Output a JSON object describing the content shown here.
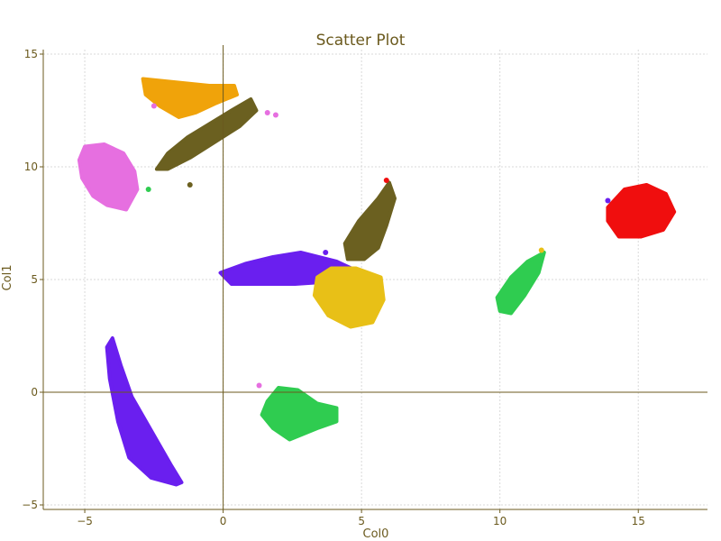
{
  "chart_data": {
    "type": "scatter",
    "title": "Scatter Plot",
    "xlabel": "Col0",
    "ylabel": "Col1",
    "xlim": [
      -6.5,
      17.5
    ],
    "ylim": [
      -5.2,
      15.2
    ],
    "xticks": [
      -5,
      0,
      5,
      10,
      15
    ],
    "yticks": [
      -5,
      0,
      5,
      10,
      15
    ],
    "grid": true,
    "clusters": [
      {
        "color": "#f0a30a",
        "points": [
          [
            -2.9,
            13.9
          ],
          [
            -2.1,
            13.8
          ],
          [
            -1.3,
            13.7
          ],
          [
            -0.5,
            13.6
          ],
          [
            0.4,
            13.6
          ],
          [
            0.5,
            13.2
          ],
          [
            -0.3,
            12.8
          ],
          [
            -1.0,
            12.4
          ],
          [
            -1.6,
            12.2
          ],
          [
            -2.3,
            12.7
          ],
          [
            -2.8,
            13.2
          ]
        ]
      },
      {
        "color": "#6b6020",
        "points": [
          [
            -2.4,
            9.9
          ],
          [
            -2.0,
            10.6
          ],
          [
            -1.3,
            11.3
          ],
          [
            -0.5,
            11.9
          ],
          [
            0.3,
            12.5
          ],
          [
            1.0,
            13.0
          ],
          [
            1.2,
            12.5
          ],
          [
            0.6,
            11.8
          ],
          [
            -0.3,
            11.1
          ],
          [
            -1.2,
            10.4
          ],
          [
            -2.0,
            9.9
          ]
        ]
      },
      {
        "color": "#e66fe0",
        "points": [
          [
            -5.0,
            10.9
          ],
          [
            -4.3,
            11.0
          ],
          [
            -3.6,
            10.6
          ],
          [
            -3.2,
            9.8
          ],
          [
            -3.1,
            9.0
          ],
          [
            -3.5,
            8.1
          ],
          [
            -4.2,
            8.3
          ],
          [
            -4.7,
            8.7
          ],
          [
            -5.1,
            9.5
          ],
          [
            -5.2,
            10.3
          ]
        ]
      },
      {
        "color": "#6a1fef",
        "points": [
          [
            -0.1,
            5.3
          ],
          [
            0.8,
            5.7
          ],
          [
            1.8,
            6.0
          ],
          [
            2.8,
            6.2
          ],
          [
            4.1,
            5.8
          ],
          [
            4.8,
            5.4
          ],
          [
            3.8,
            4.9
          ],
          [
            2.6,
            4.8
          ],
          [
            1.4,
            4.8
          ],
          [
            0.3,
            4.8
          ]
        ]
      },
      {
        "color": "#6b6020",
        "points": [
          [
            4.4,
            6.6
          ],
          [
            4.9,
            7.6
          ],
          [
            5.6,
            8.6
          ],
          [
            6.0,
            9.3
          ],
          [
            6.2,
            8.6
          ],
          [
            5.9,
            7.4
          ],
          [
            5.6,
            6.4
          ],
          [
            5.1,
            5.9
          ],
          [
            4.5,
            5.9
          ]
        ]
      },
      {
        "color": "#e8c017",
        "points": [
          [
            3.4,
            5.1
          ],
          [
            3.9,
            5.5
          ],
          [
            4.8,
            5.5
          ],
          [
            5.7,
            5.1
          ],
          [
            5.8,
            4.1
          ],
          [
            5.4,
            3.1
          ],
          [
            4.6,
            2.9
          ],
          [
            3.8,
            3.4
          ],
          [
            3.3,
            4.3
          ]
        ]
      },
      {
        "color": "#2fcc50",
        "points": [
          [
            9.9,
            4.2
          ],
          [
            10.4,
            5.1
          ],
          [
            11.0,
            5.8
          ],
          [
            11.6,
            6.2
          ],
          [
            11.4,
            5.3
          ],
          [
            10.9,
            4.3
          ],
          [
            10.4,
            3.5
          ],
          [
            10.0,
            3.6
          ]
        ]
      },
      {
        "color": "#f00e0e",
        "points": [
          [
            13.9,
            8.2
          ],
          [
            14.5,
            9.0
          ],
          [
            15.3,
            9.2
          ],
          [
            16.0,
            8.8
          ],
          [
            16.3,
            8.0
          ],
          [
            15.9,
            7.2
          ],
          [
            15.1,
            6.9
          ],
          [
            14.3,
            6.9
          ],
          [
            13.9,
            7.6
          ]
        ]
      },
      {
        "color": "#2fcc50",
        "points": [
          [
            1.6,
            -0.4
          ],
          [
            2.0,
            0.2
          ],
          [
            2.7,
            0.1
          ],
          [
            3.4,
            -0.5
          ],
          [
            4.1,
            -0.7
          ],
          [
            4.1,
            -1.3
          ],
          [
            3.4,
            -1.6
          ],
          [
            2.4,
            -2.1
          ],
          [
            1.8,
            -1.6
          ],
          [
            1.4,
            -1.0
          ]
        ]
      },
      {
        "color": "#6a1fef",
        "points": [
          [
            -4.0,
            2.4
          ],
          [
            -3.7,
            1.2
          ],
          [
            -3.3,
            -0.2
          ],
          [
            -2.6,
            -1.7
          ],
          [
            -1.9,
            -3.2
          ],
          [
            -1.5,
            -4.0
          ],
          [
            -1.7,
            -4.1
          ],
          [
            -2.6,
            -3.8
          ],
          [
            -3.4,
            -2.9
          ],
          [
            -3.8,
            -1.3
          ],
          [
            -4.1,
            0.6
          ],
          [
            -4.2,
            2.0
          ]
        ]
      }
    ],
    "scatter_points": [
      {
        "x": 1.6,
        "y": 12.4,
        "color": "#e66fe0"
      },
      {
        "x": 1.9,
        "y": 12.3,
        "color": "#e66fe0"
      },
      {
        "x": -2.5,
        "y": 12.7,
        "color": "#e66fe0"
      },
      {
        "x": -1.2,
        "y": 9.2,
        "color": "#6b6020"
      },
      {
        "x": -2.7,
        "y": 9.0,
        "color": "#2fcc50"
      },
      {
        "x": 3.7,
        "y": 6.2,
        "color": "#6a1fef"
      },
      {
        "x": 5.9,
        "y": 9.4,
        "color": "#f00e0e"
      },
      {
        "x": 1.3,
        "y": 0.3,
        "color": "#e66fe0"
      },
      {
        "x": 11.5,
        "y": 6.3,
        "color": "#e8c017"
      },
      {
        "x": 13.9,
        "y": 8.5,
        "color": "#6a1fef"
      }
    ]
  }
}
